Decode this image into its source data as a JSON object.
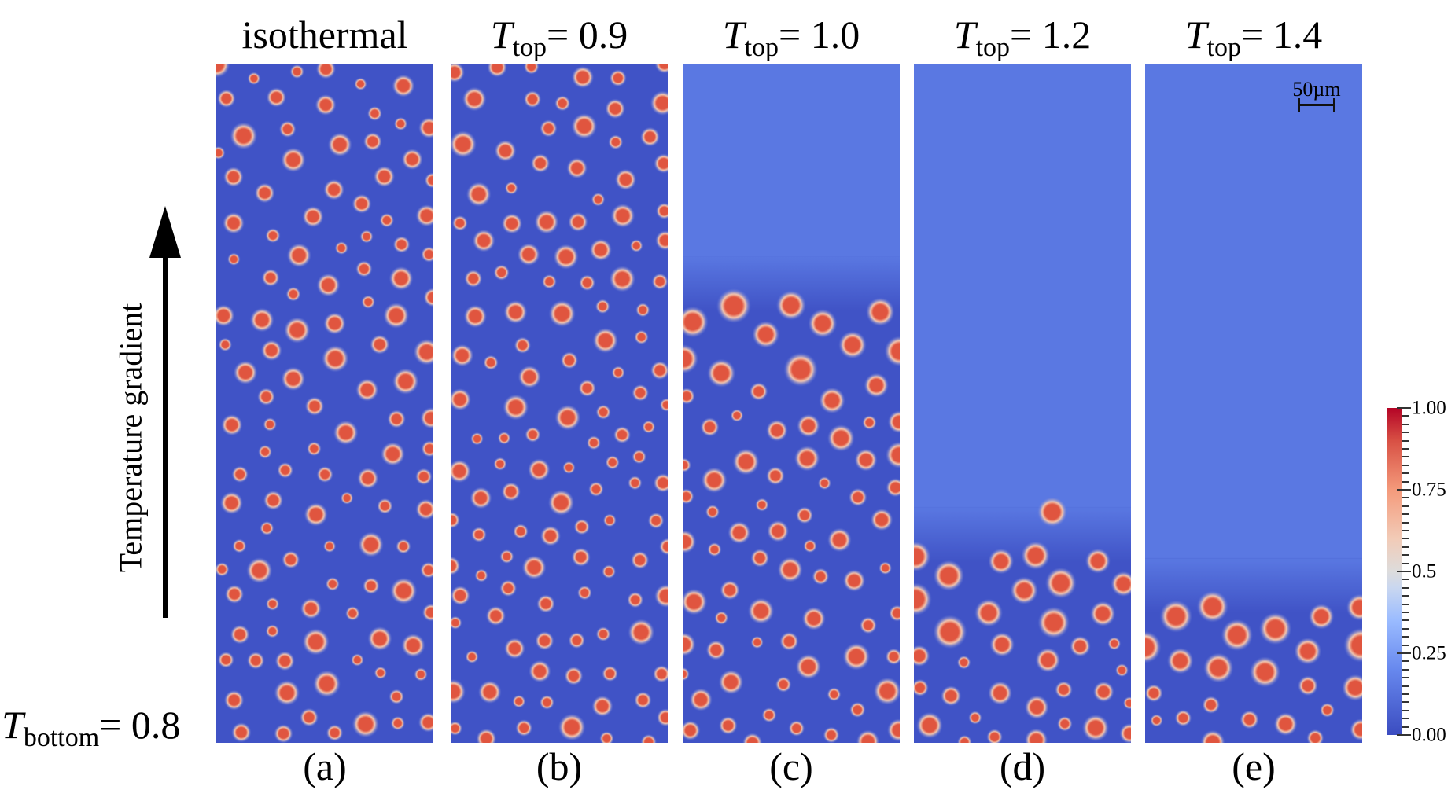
{
  "figure": {
    "panels": [
      {
        "id": "a",
        "title": "isothermal",
        "title_is_T": false,
        "label": "(a)"
      },
      {
        "id": "b",
        "title_var": "T",
        "title_sub": "top",
        "title_value": "= 0.9",
        "title_is_T": true,
        "label": "(b)"
      },
      {
        "id": "c",
        "title_var": "T",
        "title_sub": "top",
        "title_value": "= 1.0",
        "title_is_T": true,
        "label": "(c)"
      },
      {
        "id": "d",
        "title_var": "T",
        "title_sub": "top",
        "title_value": "= 1.2",
        "title_is_T": true,
        "label": "(d)"
      },
      {
        "id": "e",
        "title_var": "T",
        "title_sub": "top",
        "title_value": "= 1.4",
        "title_is_T": true,
        "label": "(e)"
      }
    ],
    "bottom_label": {
      "var": "T",
      "sub": "bottom",
      "value": "= 0.8"
    },
    "arrow_label": "Temperature gradient",
    "scale_bar": "50µm",
    "colorbar": {
      "ticks": [
        "1.00",
        "0.75",
        "0.5",
        "0.25",
        "0.00"
      ],
      "range": [
        0,
        1
      ],
      "colormap": "coolwarm"
    },
    "colors": {
      "matrix_dark": "#4053c6",
      "matrix_light": "#5a78e2",
      "droplet_core": "#e0553f",
      "droplet_halo": "#f4c8b0"
    }
  }
}
